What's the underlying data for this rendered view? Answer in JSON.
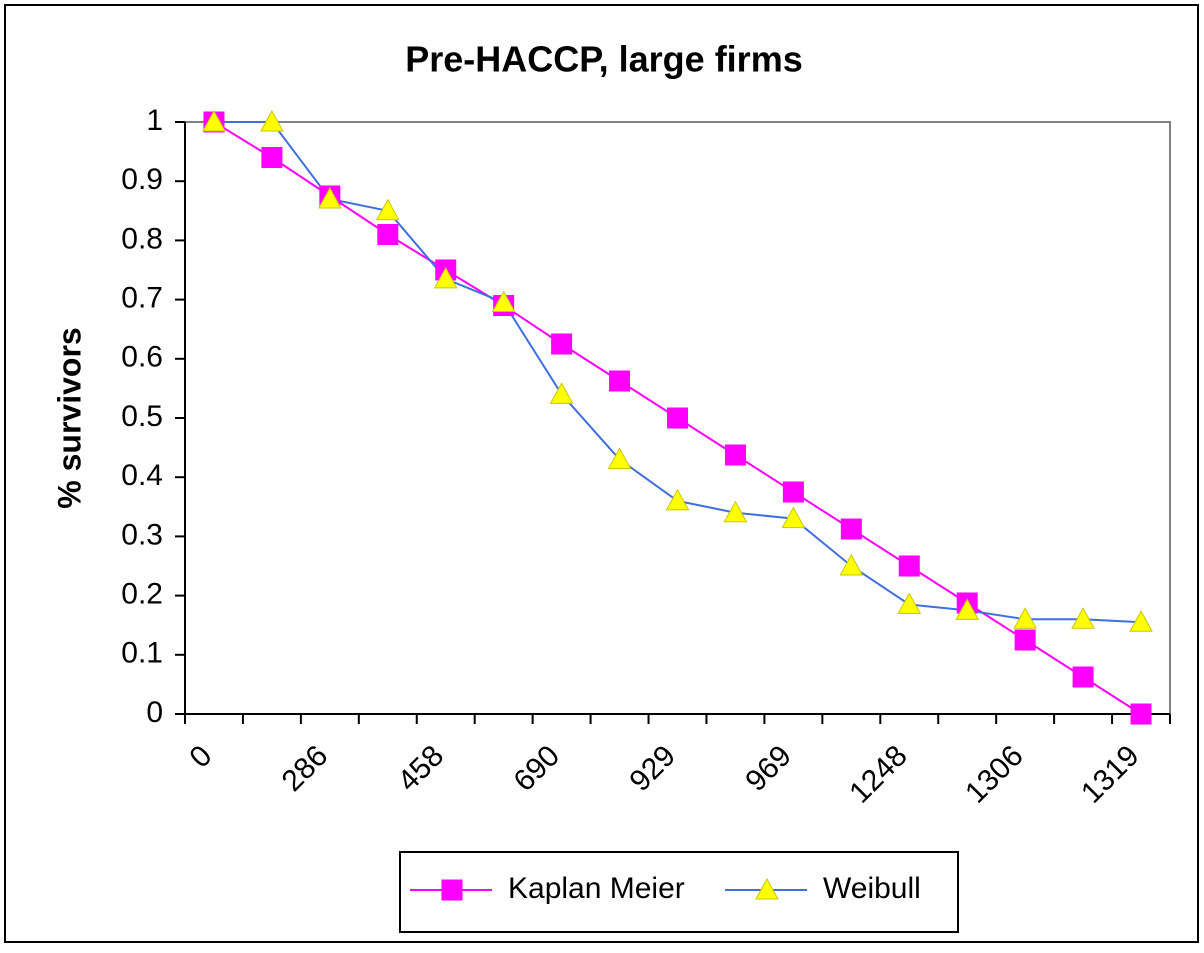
{
  "chart_data": {
    "type": "line",
    "title": "Pre-HACCP, large firms",
    "y_label": "% survivors",
    "categories": [
      "0",
      null,
      "286",
      null,
      "458",
      null,
      "690",
      null,
      "929",
      null,
      "969",
      null,
      "1248",
      null,
      "1306",
      null,
      "1319"
    ],
    "series": [
      {
        "name": "Kaplan Meier",
        "color": "#ff00ff",
        "marker": "square",
        "marker_color": "#ff00ff",
        "values": [
          1,
          0.94,
          0.875,
          0.81,
          0.75,
          0.69,
          0.625,
          0.5625,
          0.5,
          0.4375,
          0.375,
          0.3125,
          0.25,
          0.1875,
          0.125,
          0.0625,
          0
        ]
      },
      {
        "name": "Weibull",
        "color": "#3f6fe0",
        "marker": "triangle",
        "marker_color": "#ffff00",
        "values": [
          1,
          1,
          0.87,
          0.85,
          0.735,
          0.695,
          0.54,
          0.43,
          0.36,
          0.34,
          0.33,
          0.25,
          0.185,
          0.175,
          0.16,
          0.16,
          0.155
        ]
      }
    ],
    "ylim": [
      0,
      1
    ],
    "yticks": [
      0,
      0.1,
      0.2,
      0.3,
      0.4,
      0.5,
      0.6,
      0.7,
      0.8,
      0.9,
      1
    ],
    "grid": false,
    "legend": "bottom"
  }
}
